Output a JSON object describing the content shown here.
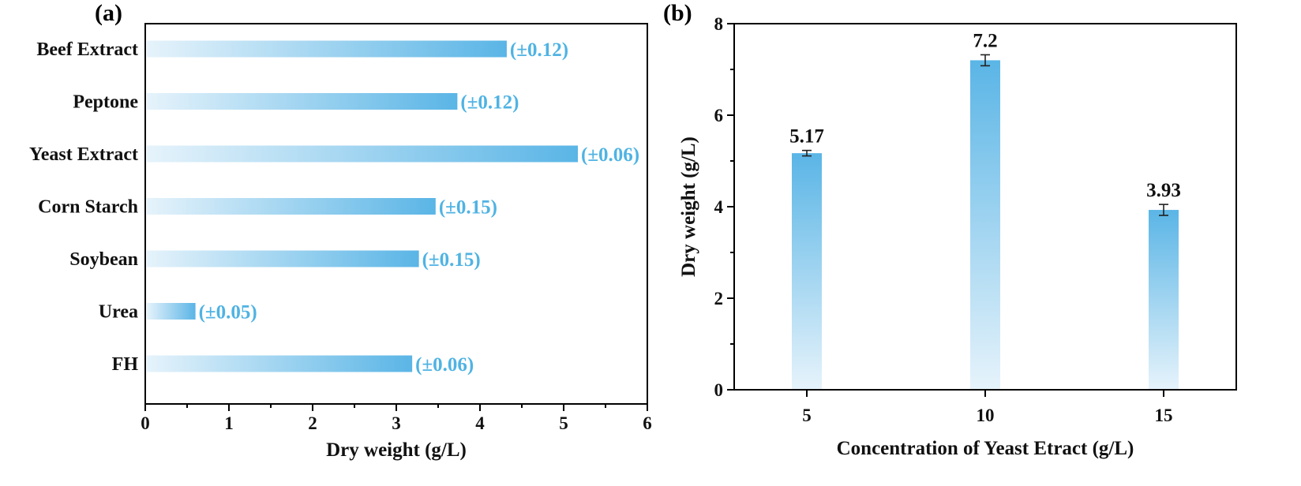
{
  "colors": {
    "bar_light": "#e6f3fb",
    "bar_dark": "#5ab5e6",
    "error_text": "#4fb3e3",
    "axis": "#000000"
  },
  "chart_data": [
    {
      "panel": "(a)",
      "type": "bar",
      "orientation": "horizontal",
      "categories": [
        "Beef Extract",
        "Peptone",
        "Yeast Extract",
        "Corn Starch",
        "Soybean",
        "Urea",
        "FH"
      ],
      "values": [
        4.32,
        3.73,
        5.17,
        3.47,
        3.27,
        0.6,
        3.19
      ],
      "error_labels": [
        "(±0.12)",
        "(±0.12)",
        "(±0.06)",
        "(±0.15)",
        "(±0.15)",
        "(±0.05)",
        "(±0.06)"
      ],
      "xlabel": "Dry weight (g/L)",
      "ylabel": "",
      "xlim": [
        0,
        6
      ],
      "xticks": [
        "0",
        "1",
        "2",
        "3",
        "4",
        "5",
        "6"
      ],
      "grid": false
    },
    {
      "panel": "(b)",
      "type": "bar",
      "orientation": "vertical",
      "categories": [
        "5",
        "10",
        "15"
      ],
      "values": [
        5.17,
        7.2,
        3.93
      ],
      "errors": [
        0.06,
        0.12,
        0.12
      ],
      "value_labels": [
        "5.17",
        "7.2",
        "3.93"
      ],
      "xlabel": "Concentration of Yeast Etract  (g/L)",
      "ylabel": "Dry weight (g/L)",
      "ylim": [
        0,
        8
      ],
      "yticks": [
        "0",
        "2",
        "4",
        "6",
        "8"
      ],
      "grid": false
    }
  ]
}
